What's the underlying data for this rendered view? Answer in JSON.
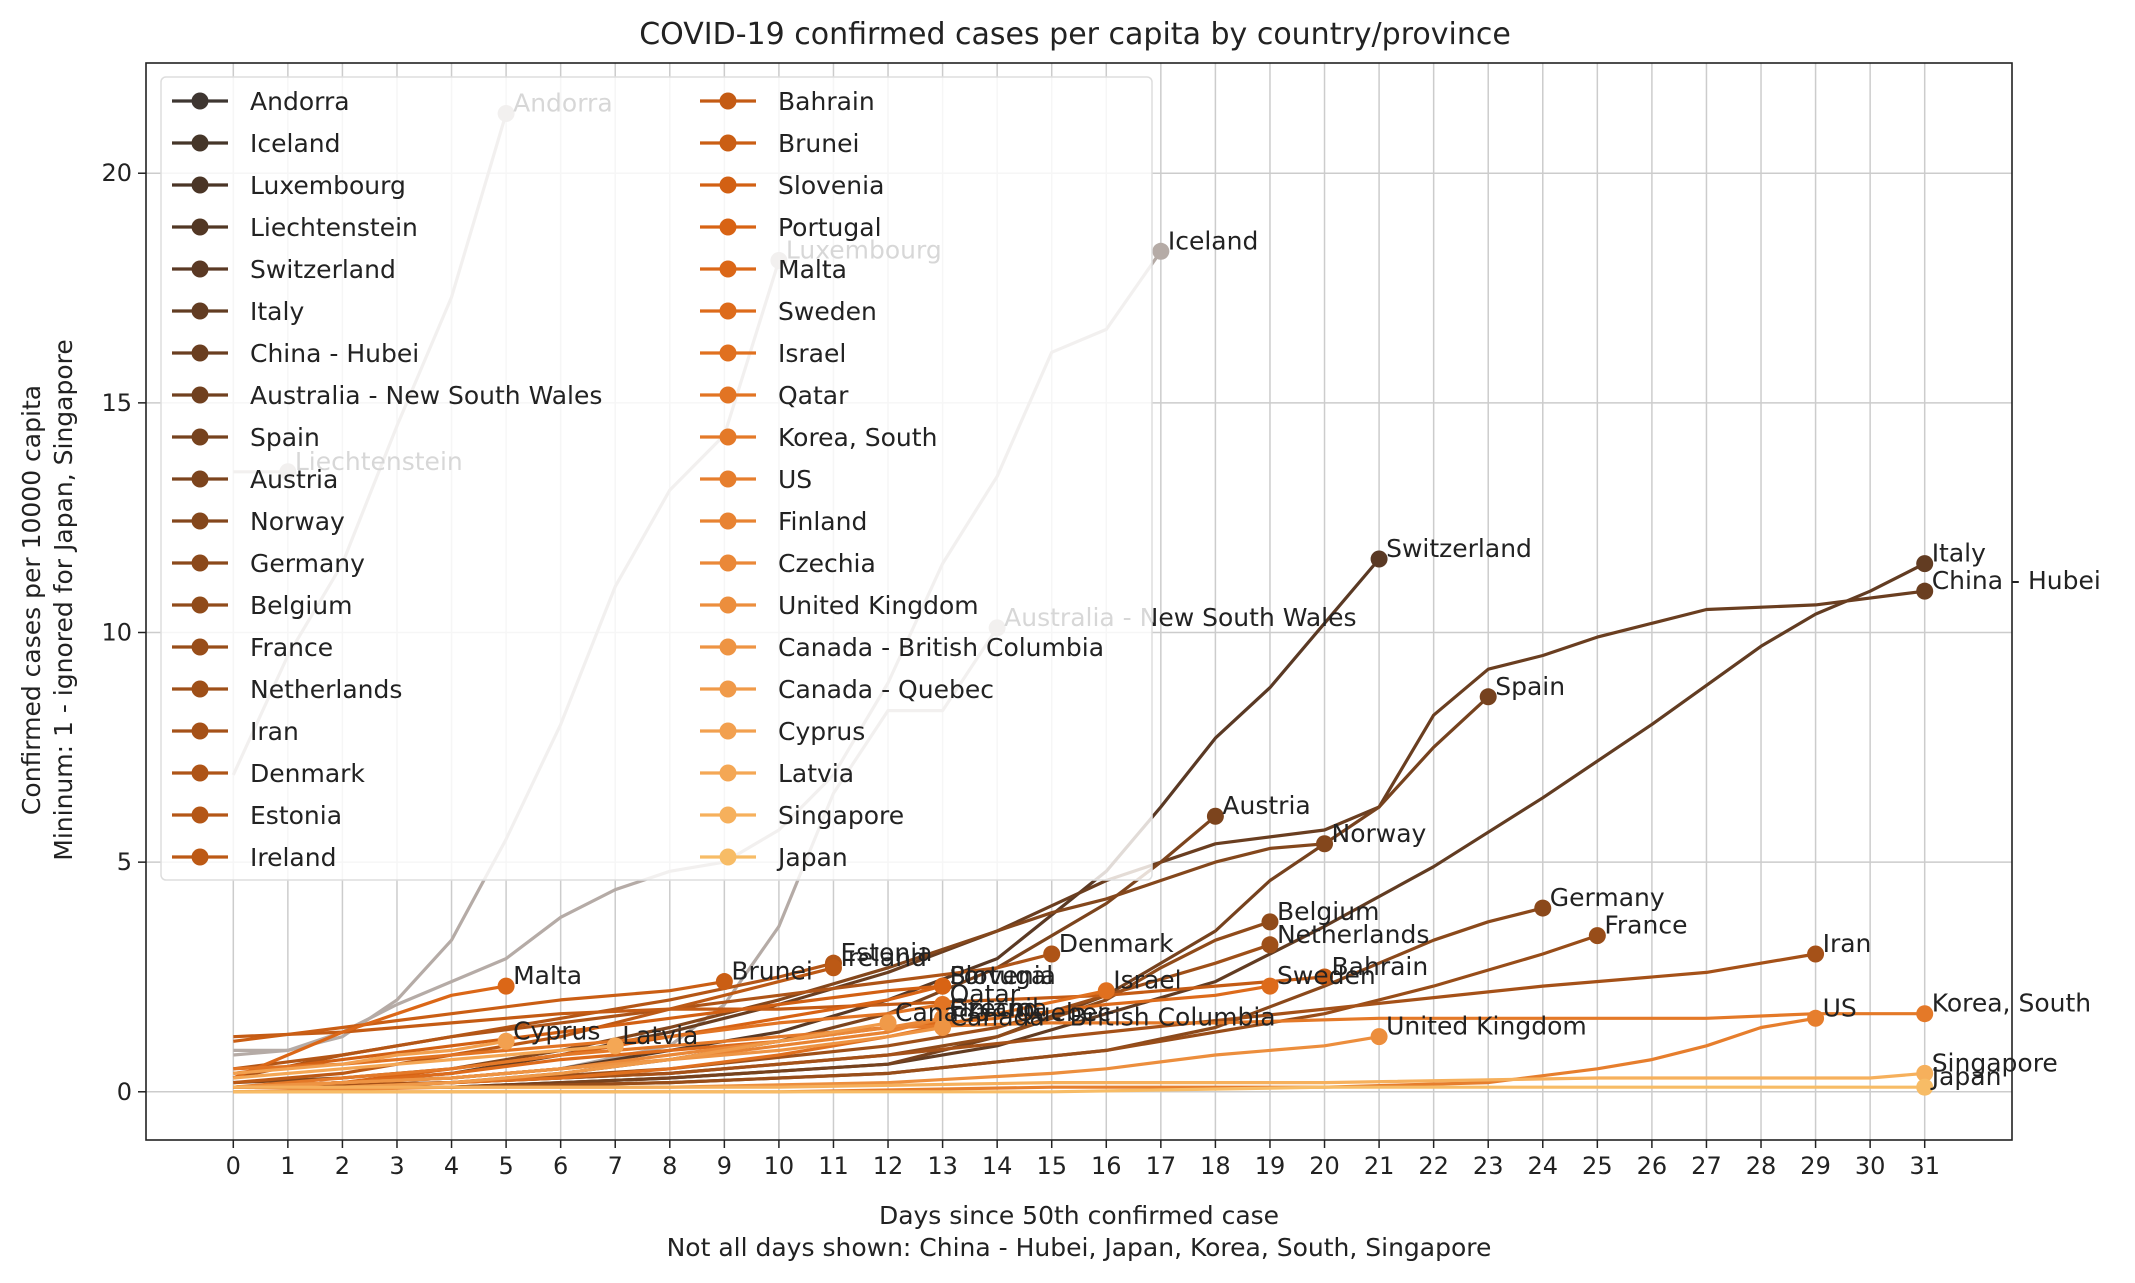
{
  "chart_data": {
    "type": "line",
    "title": "COVID-19 confirmed cases per capita by country/province",
    "xlabel": "Days since 50th confirmed case",
    "xlabel_note": "Not all days shown: China - Hubei, Japan, Korea, South, Singapore",
    "ylabel": "Confirmed cases per 10000 capita",
    "ylabel_note": "Mininum: 1 - ignored for Japan, Singapore",
    "xlim": [
      -1.6,
      32.6
    ],
    "ylim": [
      -1.05,
      22.4
    ],
    "xticks": [
      0,
      1,
      2,
      3,
      4,
      5,
      6,
      7,
      8,
      9,
      10,
      11,
      12,
      13,
      14,
      15,
      16,
      17,
      18,
      19,
      20,
      21,
      22,
      23,
      24,
      25,
      26,
      27,
      28,
      29,
      30,
      31
    ],
    "yticks": [
      0,
      5,
      10,
      15,
      20
    ],
    "grid": true,
    "legend_position": "top-left",
    "legend_columns": 2,
    "muted_color": "#b5aba6",
    "series": [
      {
        "name": "Andorra",
        "color": "#3e3631",
        "muted": true,
        "x": [
          0,
          1,
          2,
          3,
          4,
          5
        ],
        "y": [
          6.9,
          9.5,
          11.5,
          14.5,
          17.3,
          21.3
        ]
      },
      {
        "name": "Iceland",
        "color": "#453629",
        "muted": true,
        "x": [
          0,
          1,
          2,
          3,
          4,
          5,
          6,
          7,
          8,
          9,
          10,
          11,
          12,
          13,
          14,
          15,
          16,
          17
        ],
        "y": [
          0.9,
          0.9,
          1.3,
          1.9,
          2.4,
          2.9,
          3.8,
          4.4,
          4.8,
          5.0,
          5.7,
          6.9,
          8.9,
          11.5,
          13.4,
          16.1,
          16.6,
          18.3
        ]
      },
      {
        "name": "Luxembourg",
        "color": "#4a3526",
        "muted": true,
        "x": [
          0,
          1,
          2,
          3,
          4,
          5,
          6,
          7,
          8,
          9,
          10
        ],
        "y": [
          0.8,
          0.9,
          1.2,
          2.0,
          3.3,
          5.5,
          8.0,
          11.0,
          13.1,
          14.3,
          18.1
        ]
      },
      {
        "name": "Liechtenstein",
        "color": "#523724",
        "muted": true,
        "x": [
          0,
          1
        ],
        "y": [
          13.5,
          13.5
        ]
      },
      {
        "name": "Switzerland",
        "color": "#5a3924",
        "x": [
          0,
          2,
          4,
          6,
          8,
          10,
          12,
          14,
          16,
          17,
          18,
          19,
          20,
          21
        ],
        "y": [
          0.1,
          0.2,
          0.3,
          0.5,
          0.9,
          1.3,
          2.0,
          2.9,
          4.8,
          6.2,
          7.7,
          8.8,
          10.2,
          11.6
        ]
      },
      {
        "name": "Italy",
        "color": "#623c22",
        "x": [
          0,
          4,
          8,
          12,
          14,
          16,
          18,
          20,
          22,
          24,
          26,
          28,
          29,
          30,
          31
        ],
        "y": [
          0.1,
          0.1,
          0.3,
          0.6,
          1.0,
          1.7,
          2.4,
          3.6,
          4.9,
          6.4,
          8.0,
          9.7,
          10.4,
          10.9,
          11.5
        ]
      },
      {
        "name": "China - Hubei",
        "color": "#6a3e20",
        "x": [
          0,
          2,
          4,
          6,
          8,
          10,
          12,
          14,
          16,
          18,
          20,
          21,
          22,
          23,
          24,
          25,
          26,
          27,
          29,
          31
        ],
        "y": [
          0.1,
          0.2,
          0.4,
          0.8,
          1.3,
          1.9,
          2.6,
          3.5,
          4.6,
          5.4,
          5.7,
          6.2,
          8.2,
          9.2,
          9.5,
          9.9,
          10.2,
          10.5,
          10.6,
          10.9
        ]
      },
      {
        "name": "Australia - New South Wales",
        "color": "#70401f",
        "muted": true,
        "x": [
          0,
          2,
          4,
          6,
          8,
          9,
          10,
          11,
          12,
          13,
          14
        ],
        "y": [
          0.1,
          0.2,
          0.3,
          0.5,
          1.0,
          1.9,
          3.6,
          6.5,
          8.3,
          8.3,
          10.1
        ]
      },
      {
        "name": "Spain",
        "color": "#76421e",
        "x": [
          0,
          4,
          8,
          12,
          14,
          16,
          18,
          19,
          20,
          21,
          22,
          23
        ],
        "y": [
          0.1,
          0.1,
          0.3,
          0.6,
          1.2,
          2.1,
          3.5,
          4.6,
          5.4,
          6.2,
          7.5,
          8.6
        ]
      },
      {
        "name": "Austria",
        "color": "#7c441d",
        "x": [
          0,
          2,
          4,
          6,
          8,
          10,
          12,
          14,
          16,
          17,
          18
        ],
        "y": [
          0.1,
          0.1,
          0.2,
          0.4,
          0.7,
          1.1,
          1.7,
          2.7,
          4.1,
          5.0,
          6.0
        ]
      },
      {
        "name": "Norway",
        "color": "#84471c",
        "x": [
          0,
          2,
          4,
          6,
          8,
          10,
          12,
          14,
          15,
          16,
          17,
          18,
          19,
          20
        ],
        "y": [
          0.2,
          0.3,
          0.5,
          0.9,
          1.4,
          2.0,
          2.7,
          3.5,
          3.9,
          4.2,
          4.6,
          5.0,
          5.3,
          5.4
        ]
      },
      {
        "name": "Germany",
        "color": "#8b491b",
        "x": [
          0,
          4,
          8,
          12,
          16,
          18,
          20,
          22,
          23,
          24
        ],
        "y": [
          0.1,
          0.1,
          0.2,
          0.4,
          0.9,
          1.4,
          2.3,
          3.3,
          3.7,
          4.0
        ]
      },
      {
        "name": "Belgium",
        "color": "#904b1a",
        "x": [
          0,
          4,
          8,
          12,
          14,
          16,
          17,
          18,
          19
        ],
        "y": [
          0.1,
          0.2,
          0.4,
          0.8,
          1.2,
          2.0,
          2.7,
          3.3,
          3.7
        ]
      },
      {
        "name": "France",
        "color": "#984d19",
        "x": [
          0,
          4,
          8,
          12,
          16,
          20,
          22,
          24,
          25
        ],
        "y": [
          0.1,
          0.1,
          0.2,
          0.4,
          0.9,
          1.7,
          2.3,
          3.0,
          3.4
        ]
      },
      {
        "name": "Netherlands",
        "color": "#9e4f18",
        "x": [
          0,
          4,
          8,
          12,
          14,
          16,
          18,
          19
        ],
        "y": [
          0.1,
          0.2,
          0.5,
          1.0,
          1.4,
          2.1,
          2.8,
          3.2
        ]
      },
      {
        "name": "Iran",
        "color": "#a55118",
        "x": [
          0,
          4,
          8,
          12,
          16,
          20,
          24,
          27,
          29
        ],
        "y": [
          0.1,
          0.2,
          0.4,
          0.8,
          1.3,
          1.8,
          2.3,
          2.6,
          3.0
        ]
      },
      {
        "name": "Denmark",
        "color": "#ae5417",
        "x": [
          0,
          2,
          4,
          6,
          8,
          10,
          12,
          14,
          15
        ],
        "y": [
          0.3,
          0.8,
          1.2,
          1.5,
          1.8,
          2.1,
          2.4,
          2.7,
          3.0
        ]
      },
      {
        "name": "Estonia",
        "color": "#b45616",
        "x": [
          0,
          2,
          4,
          6,
          8,
          10,
          11
        ],
        "y": [
          0.5,
          0.8,
          1.2,
          1.6,
          2.0,
          2.5,
          2.8
        ]
      },
      {
        "name": "Ireland",
        "color": "#bc5915",
        "x": [
          0,
          2,
          4,
          6,
          8,
          10,
          11
        ],
        "y": [
          0.2,
          0.4,
          0.8,
          1.2,
          1.8,
          2.4,
          2.7
        ]
      },
      {
        "name": "Bahrain",
        "color": "#c45b14",
        "x": [
          0,
          2,
          4,
          6,
          8,
          10,
          12,
          14,
          16,
          18,
          20
        ],
        "y": [
          1.2,
          1.3,
          1.5,
          1.7,
          1.8,
          1.8,
          1.9,
          2.0,
          2.1,
          2.3,
          2.5
        ]
      },
      {
        "name": "Brunei",
        "color": "#ca5e14",
        "x": [
          0,
          2,
          4,
          6,
          8,
          9
        ],
        "y": [
          1.1,
          1.4,
          1.7,
          2.0,
          2.2,
          2.4
        ]
      },
      {
        "name": "Slovenia",
        "color": "#d26013",
        "x": [
          0,
          2,
          4,
          6,
          8,
          10,
          12,
          13
        ],
        "y": [
          0.4,
          0.7,
          1.0,
          1.3,
          1.6,
          1.9,
          2.2,
          2.3
        ]
      },
      {
        "name": "Portugal",
        "color": "#d86314",
        "x": [
          0,
          2,
          4,
          6,
          8,
          10,
          12,
          13
        ],
        "y": [
          0.1,
          0.2,
          0.5,
          0.8,
          1.2,
          1.6,
          2.0,
          2.3
        ]
      },
      {
        "name": "Malta",
        "color": "#db6717",
        "x": [
          0,
          1,
          2,
          3,
          4,
          5
        ],
        "y": [
          0.3,
          0.8,
          1.3,
          1.7,
          2.1,
          2.3
        ]
      },
      {
        "name": "Sweden",
        "color": "#dd6b1b",
        "x": [
          0,
          2,
          4,
          6,
          8,
          10,
          12,
          14,
          16,
          18,
          19
        ],
        "y": [
          0.1,
          0.2,
          0.4,
          0.7,
          0.9,
          1.1,
          1.4,
          1.6,
          1.9,
          2.1,
          2.3
        ]
      },
      {
        "name": "Israel",
        "color": "#e0701f",
        "x": [
          0,
          2,
          4,
          6,
          8,
          10,
          12,
          14,
          16
        ],
        "y": [
          0.1,
          0.1,
          0.2,
          0.3,
          0.5,
          0.8,
          1.2,
          1.7,
          2.2
        ]
      },
      {
        "name": "Qatar",
        "color": "#e27423",
        "x": [
          0,
          2,
          4,
          6,
          8,
          10,
          12,
          13
        ],
        "y": [
          0.5,
          0.6,
          0.8,
          1.0,
          1.2,
          1.5,
          1.7,
          1.9
        ]
      },
      {
        "name": "Korea, South",
        "color": "#e47928",
        "x": [
          0,
          2,
          4,
          6,
          8,
          10,
          12,
          15,
          18,
          21,
          24,
          27,
          29,
          31
        ],
        "y": [
          0.1,
          0.3,
          0.5,
          0.8,
          1.0,
          1.2,
          1.4,
          1.5,
          1.5,
          1.6,
          1.6,
          1.6,
          1.7,
          1.7
        ]
      },
      {
        "name": "US",
        "color": "#e67e2d",
        "x": [
          0,
          5,
          10,
          15,
          20,
          23,
          25,
          26,
          27,
          28,
          29
        ],
        "y": [
          0.0,
          0.0,
          0.0,
          0.1,
          0.1,
          0.2,
          0.5,
          0.7,
          1.0,
          1.4,
          1.6
        ]
      },
      {
        "name": "Finland",
        "color": "#e88332",
        "x": [
          0,
          2,
          4,
          6,
          8,
          10,
          12,
          13
        ],
        "y": [
          0.1,
          0.2,
          0.3,
          0.5,
          0.7,
          1.0,
          1.3,
          1.6
        ]
      },
      {
        "name": "Czechia",
        "color": "#ea8838",
        "x": [
          0,
          2,
          4,
          6,
          8,
          10,
          12,
          13
        ],
        "y": [
          0.1,
          0.2,
          0.3,
          0.5,
          0.8,
          1.1,
          1.4,
          1.6
        ]
      },
      {
        "name": "United Kingdom",
        "color": "#ec8e3d",
        "x": [
          0,
          4,
          8,
          12,
          15,
          16,
          18,
          20,
          21
        ],
        "y": [
          0.0,
          0.1,
          0.1,
          0.2,
          0.4,
          0.5,
          0.8,
          1.0,
          1.2
        ]
      },
      {
        "name": "Canada - British Columbia",
        "color": "#ee9443",
        "x": [
          0,
          2,
          4,
          6,
          8,
          10,
          12,
          13
        ],
        "y": [
          0.1,
          0.2,
          0.3,
          0.5,
          0.7,
          0.9,
          1.2,
          1.4
        ]
      },
      {
        "name": "Canada - Quebec",
        "color": "#f09a49",
        "x": [
          0,
          2,
          4,
          6,
          8,
          10,
          12
        ],
        "y": [
          0.1,
          0.1,
          0.2,
          0.4,
          0.7,
          1.1,
          1.5
        ]
      },
      {
        "name": "Cyprus",
        "color": "#f2a04f",
        "x": [
          0,
          1,
          2,
          3,
          4,
          5
        ],
        "y": [
          0.4,
          0.5,
          0.6,
          0.8,
          0.9,
          1.1
        ]
      },
      {
        "name": "Latvia",
        "color": "#f4a755",
        "x": [
          0,
          2,
          4,
          6,
          7
        ],
        "y": [
          0.3,
          0.5,
          0.7,
          0.9,
          1.0
        ]
      },
      {
        "name": "Singapore",
        "color": "#f6b05c",
        "x": [
          0,
          5,
          10,
          15,
          20,
          25,
          30,
          31
        ],
        "y": [
          0.1,
          0.1,
          0.1,
          0.2,
          0.2,
          0.3,
          0.3,
          0.4
        ]
      },
      {
        "name": "Japan",
        "color": "#f7bc66",
        "x": [
          0,
          5,
          10,
          15,
          20,
          25,
          30,
          31
        ],
        "y": [
          0.0,
          0.0,
          0.0,
          0.0,
          0.1,
          0.1,
          0.1,
          0.1
        ]
      }
    ],
    "end_labels": [
      {
        "text": "Andorra",
        "series": "Andorra",
        "muted": true
      },
      {
        "text": "Iceland",
        "series": "Iceland"
      },
      {
        "text": "Luxembourg",
        "series": "Luxembourg",
        "muted": true
      },
      {
        "text": "Malta",
        "series": "Malta"
      },
      {
        "text": "Liechtenstein",
        "series": "Liechtenstein",
        "muted": true
      },
      {
        "text": "Switzerland",
        "series": "Switzerland"
      },
      {
        "text": "Italy",
        "series": "Italy"
      },
      {
        "text": "China - Hubei",
        "series": "China - Hubei"
      },
      {
        "text": "Australia - New South Wales",
        "series": "Australia - New South Wales",
        "muted": true
      },
      {
        "text": "Spain",
        "series": "Spain"
      },
      {
        "text": "Austria",
        "series": "Austria"
      },
      {
        "text": "Norway",
        "series": "Norway"
      },
      {
        "text": "Belgium",
        "series": "Belgium"
      },
      {
        "text": "Germany",
        "series": "Germany"
      },
      {
        "text": "Netherlands",
        "series": "Netherlands"
      },
      {
        "text": "France",
        "series": "France"
      },
      {
        "text": "Denmark",
        "series": "Denmark"
      },
      {
        "text": "Estonia",
        "series": "Estonia"
      },
      {
        "text": "Ireland",
        "series": "Ireland"
      },
      {
        "text": "Brunei",
        "series": "Brunei"
      },
      {
        "text": "Malta",
        "series": "Malta",
        "skip": true
      },
      {
        "text": "Iran",
        "series": "Iran"
      },
      {
        "text": "Bahrain",
        "series": "Bahrain"
      },
      {
        "text": "Sweden",
        "series": "Sweden"
      },
      {
        "text": "Slovenia",
        "series": "Slovenia"
      },
      {
        "text": "Portugal",
        "series": "Portugal"
      },
      {
        "text": "Israel",
        "series": "Israel"
      },
      {
        "text": "Qatar",
        "series": "Qatar"
      },
      {
        "text": "Finland",
        "series": "Finland"
      },
      {
        "text": "Czechia",
        "series": "Czechia"
      },
      {
        "text": "Canada - British Columbia",
        "series": "Canada - British Columbia"
      },
      {
        "text": "Canada - Quebec",
        "series": "Canada - Quebec"
      },
      {
        "text": "Cyprus",
        "series": "Cyprus"
      },
      {
        "text": "Latvia",
        "series": "Latvia"
      },
      {
        "text": "United Kingdom",
        "series": "United Kingdom"
      },
      {
        "text": "US",
        "series": "US"
      },
      {
        "text": "Korea, South",
        "series": "Korea, South"
      },
      {
        "text": "Singapore",
        "series": "Singapore"
      },
      {
        "text": "Japan",
        "series": "Japan"
      }
    ]
  }
}
